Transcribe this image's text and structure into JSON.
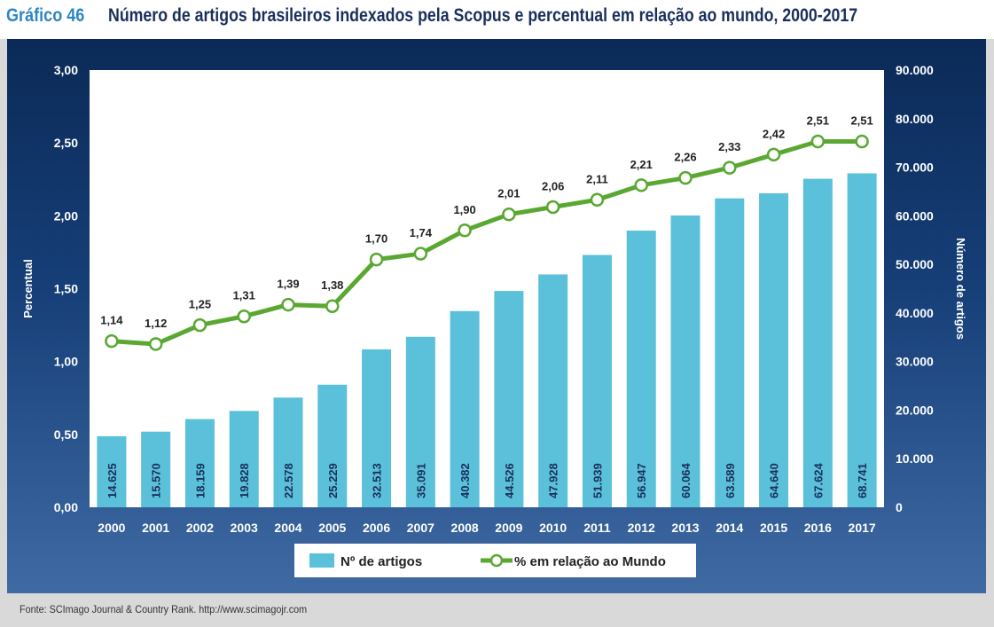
{
  "header": {
    "number": "Gráfico 46",
    "title": "Número de artigos brasileiros indexados pela Scopus e percentual em relação ao mundo, 2000-2017"
  },
  "footer": {
    "source": "Fonte: SCImago Journal & Country Rank. http://www.scimagojr.com"
  },
  "colors": {
    "bar": "#5bc0d9",
    "line": "#5aa832",
    "marker_fill": "#ffffff",
    "plot_bg": "#ffffff"
  },
  "chart_data": {
    "type": "bar",
    "categories": [
      "2000",
      "2001",
      "2002",
      "2003",
      "2004",
      "2005",
      "2006",
      "2007",
      "2008",
      "2009",
      "2010",
      "2011",
      "2012",
      "2013",
      "2014",
      "2015",
      "2016",
      "2017"
    ],
    "series": [
      {
        "name": "Nº de artigos",
        "type": "bar",
        "axis": "right",
        "values": [
          14625,
          15570,
          18159,
          19828,
          22578,
          25229,
          32513,
          35091,
          40382,
          44526,
          47928,
          51939,
          56947,
          60064,
          63589,
          64640,
          67624,
          68741
        ],
        "labels": [
          "14.625",
          "15.570",
          "18.159",
          "19.828",
          "22.578",
          "25.229",
          "32.513",
          "35.091",
          "40.382",
          "44.526",
          "47.928",
          "51.939",
          "56.947",
          "60.064",
          "63.589",
          "64.640",
          "67.624",
          "68.741"
        ]
      },
      {
        "name": "% em relação ao Mundo",
        "type": "line",
        "axis": "left",
        "values": [
          1.14,
          1.12,
          1.25,
          1.31,
          1.39,
          1.38,
          1.7,
          1.74,
          1.9,
          2.01,
          2.06,
          2.11,
          2.21,
          2.26,
          2.33,
          2.42,
          2.51,
          2.51
        ],
        "labels": [
          "1,14",
          "1,12",
          "1,25",
          "1,31",
          "1,39",
          "1,38",
          "1,70",
          "1,74",
          "1,90",
          "2,01",
          "2,06",
          "2,11",
          "2,21",
          "2,26",
          "2,33",
          "2,42",
          "2,51",
          "2,51"
        ]
      }
    ],
    "y_left": {
      "label": "Percentual",
      "ylim": [
        0,
        3
      ],
      "ticks": [
        "0,00",
        "0,50",
        "1,00",
        "1,50",
        "2,00",
        "2,50",
        "3,00"
      ]
    },
    "y_right": {
      "label": "Número de artigos",
      "ylim": [
        0,
        90000
      ],
      "ticks": [
        "0",
        "10.000",
        "20.000",
        "30.000",
        "40.000",
        "50.000",
        "60.000",
        "70.000",
        "80.000",
        "90.000"
      ]
    },
    "grid": false,
    "legend_position": "bottom"
  }
}
